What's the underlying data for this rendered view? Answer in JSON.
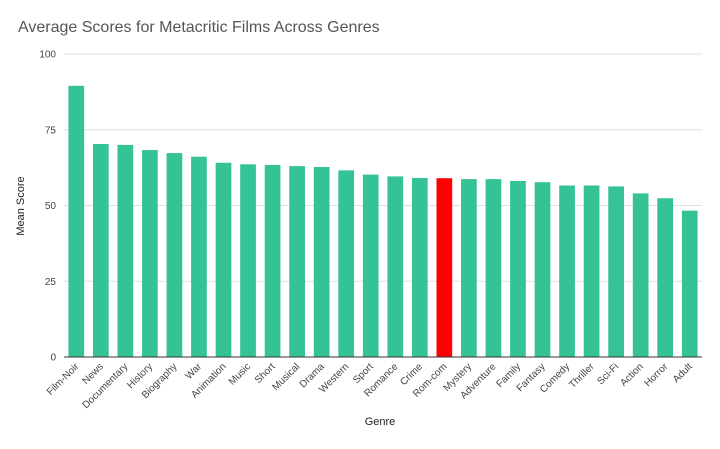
{
  "chart_data": {
    "type": "bar",
    "title": "Average Scores for Metacritic Films Across Genres",
    "xlabel": "Genre",
    "ylabel": "Mean Score",
    "ylim": [
      0,
      100
    ],
    "yticks": [
      0,
      25,
      50,
      75,
      100
    ],
    "grid": true,
    "legend": "none",
    "bar_color": "#35c296",
    "highlight_color": "#ff0000",
    "highlight_category": "Rom-com",
    "categories": [
      "Film-Noir",
      "News",
      "Documentary",
      "History",
      "Biography",
      "War",
      "Animation",
      "Music",
      "Short",
      "Musical",
      "Drama",
      "Western",
      "Sport",
      "Romance",
      "Crime",
      "Rom-com",
      "Mystery",
      "Adventure",
      "Family",
      "Fantasy",
      "Comedy",
      "Thriller",
      "Sci-Fi",
      "Action",
      "Horror",
      "Adult"
    ],
    "values": [
      89.5,
      70.3,
      70.0,
      68.3,
      67.3,
      66.1,
      64.1,
      63.6,
      63.4,
      63.0,
      62.7,
      61.6,
      60.2,
      59.6,
      59.1,
      59.0,
      58.7,
      58.7,
      58.1,
      57.7,
      56.6,
      56.6,
      56.3,
      54.0,
      52.4,
      48.3
    ]
  }
}
